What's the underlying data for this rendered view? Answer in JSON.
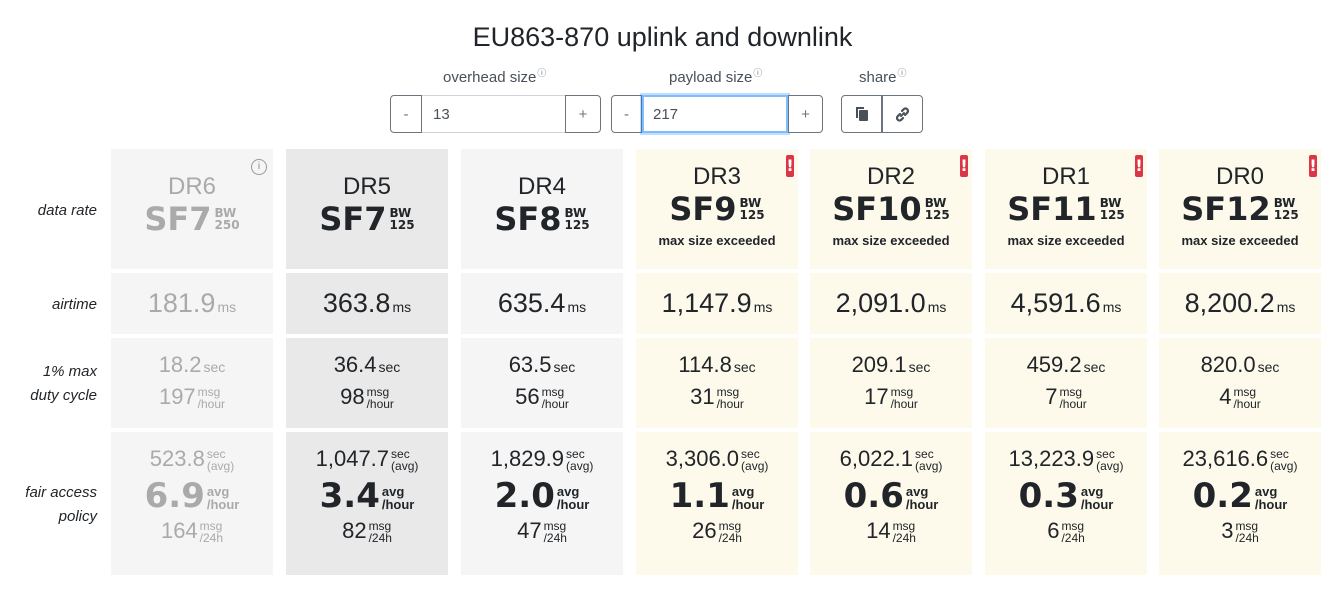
{
  "title": "EU863-870 uplink and downlink",
  "controls": {
    "overhead_label": "overhead size",
    "payload_label": "payload size",
    "share_label": "share",
    "info_icon": "ⓘ",
    "minus": "-",
    "plus": "+",
    "overhead_value": "13",
    "payload_value": "217"
  },
  "row_labels": {
    "data_rate": "data rate",
    "airtime": "airtime",
    "duty_line1": "1% max",
    "duty_line2": "duty cycle",
    "fair_line1": "fair access",
    "fair_line2": "policy"
  },
  "units": {
    "bw": "BW",
    "ms": "ms",
    "sec": "sec",
    "msg": "msg",
    "per_hour": "/hour",
    "avg_paren": "(avg)",
    "avg": "avg",
    "per_24h": "/24h"
  },
  "columns": [
    {
      "dr": "DR6",
      "sf": "SF7",
      "bw": "250",
      "exceeded": "",
      "airtime": "181.9",
      "duty_sec": "18.2",
      "duty_msg": "197",
      "fair_sec": "523.8",
      "fair_avg": "6.9",
      "fair_msg": "164",
      "state": "disabled"
    },
    {
      "dr": "DR5",
      "sf": "SF7",
      "bw": "125",
      "exceeded": "",
      "airtime": "363.8",
      "duty_sec": "36.4",
      "duty_msg": "98",
      "fair_sec": "1,047.7",
      "fair_avg": "3.4",
      "fair_msg": "82",
      "state": "selected"
    },
    {
      "dr": "DR4",
      "sf": "SF8",
      "bw": "125",
      "exceeded": "",
      "airtime": "635.4",
      "duty_sec": "63.5",
      "duty_msg": "56",
      "fair_sec": "1,829.9",
      "fair_avg": "2.0",
      "fair_msg": "47",
      "state": "normal"
    },
    {
      "dr": "DR3",
      "sf": "SF9",
      "bw": "125",
      "exceeded": "max size exceeded",
      "airtime": "1,147.9",
      "duty_sec": "114.8",
      "duty_msg": "31",
      "fair_sec": "3,306.0",
      "fair_avg": "1.1",
      "fair_msg": "26",
      "state": "exceeded"
    },
    {
      "dr": "DR2",
      "sf": "SF10",
      "bw": "125",
      "exceeded": "max size exceeded",
      "airtime": "2,091.0",
      "duty_sec": "209.1",
      "duty_msg": "17",
      "fair_sec": "6,022.1",
      "fair_avg": "0.6",
      "fair_msg": "14",
      "state": "exceeded"
    },
    {
      "dr": "DR1",
      "sf": "SF11",
      "bw": "125",
      "exceeded": "max size exceeded",
      "airtime": "4,591.6",
      "duty_sec": "459.2",
      "duty_msg": "7",
      "fair_sec": "13,223.9",
      "fair_avg": "0.3",
      "fair_msg": "6",
      "state": "exceeded"
    },
    {
      "dr": "DR0",
      "sf": "SF12",
      "bw": "125",
      "exceeded": "max size exceeded",
      "airtime": "8,200.2",
      "duty_sec": "820.0",
      "duty_msg": "4",
      "fair_sec": "23,616.6",
      "fair_avg": "0.2",
      "fair_msg": "3",
      "state": "exceeded"
    }
  ],
  "colors": {
    "disabled_bg": "#f5f5f5",
    "disabled_text": "#aaaaaa",
    "selected_bg": "#e9e9e9",
    "normal_bg": "#f5f5f5",
    "exceeded_bg": "#fdfaec",
    "warning": "#dc3545",
    "text": "#212529"
  },
  "icons": {
    "info": "info-icon",
    "warning": "warning-icon",
    "copy": "copy-icon",
    "link": "link-icon"
  },
  "warning_glyph": "!"
}
